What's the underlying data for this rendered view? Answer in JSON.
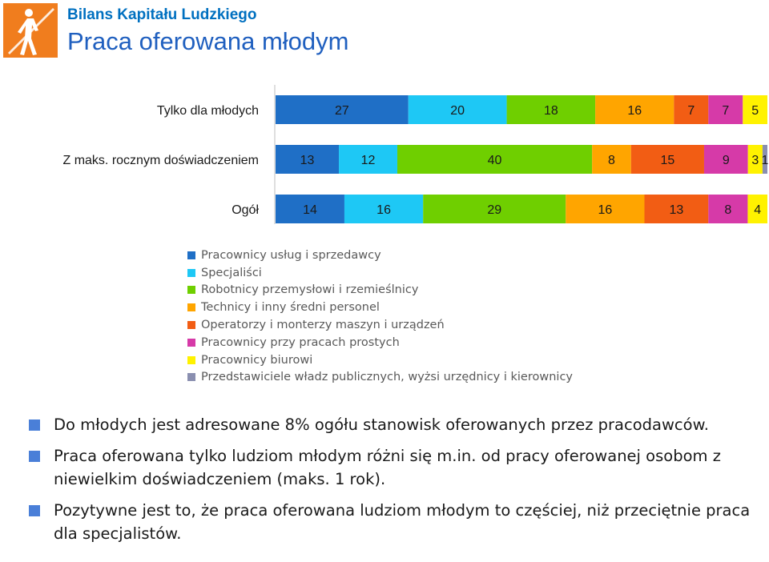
{
  "header": {
    "supertitle": "Bilans Kapitału Ludzkiego",
    "title": "Praca oferowana młodym"
  },
  "chart_data": {
    "type": "bar",
    "orientation": "horizontal",
    "stacked": true,
    "categories": [
      "Tylko dla młodych",
      "Z maks. rocznym doświadczeniem",
      "Ogół"
    ],
    "series": [
      {
        "name": "Pracownicy usług i sprzedawcy",
        "color": "#1f6fc6",
        "values": [
          27,
          13,
          14
        ]
      },
      {
        "name": "Specjaliści",
        "color": "#1ec8f5",
        "values": [
          20,
          12,
          16
        ]
      },
      {
        "name": "Robotnicy przemysłowi i rzemieślnicy",
        "color": "#6fcf00",
        "values": [
          18,
          40,
          29
        ]
      },
      {
        "name": "Technicy i inny średni personel",
        "color": "#ffa500",
        "values": [
          16,
          8,
          16
        ]
      },
      {
        "name": "Operatorzy i monterzy maszyn i urządzeń",
        "color": "#f25d14",
        "values": [
          7,
          15,
          13
        ]
      },
      {
        "name": "Pracownicy przy pracach prostych",
        "color": "#d63aa8",
        "values": [
          7,
          9,
          8
        ]
      },
      {
        "name": "Pracownicy biurowi",
        "color": "#fff200",
        "values": [
          5,
          3,
          4
        ]
      },
      {
        "name": "Przedstawiciele władz publicznych, wyżsi urzędnicy i kierownicy",
        "color": "#8a8fb0",
        "values": [
          0,
          1,
          0
        ]
      }
    ],
    "xlim": [
      0,
      100
    ],
    "legend": "bottom-left",
    "grid": false
  },
  "bullets": [
    "Do młodych jest adresowane 8% ogółu stanowisk oferowanych przez pracodawców.",
    "Praca oferowana tylko ludziom młodym różni się m.in. od pracy oferowanej osobom z niewielkim doświadczeniem (maks. 1 rok).",
    "Pozytywne jest to, że praca oferowana ludziom młodym to częściej, niż przeciętnie praca dla specjalistów."
  ],
  "colors": {
    "title": "#1f5fbf",
    "supertitle": "#0070c0",
    "logo": "#f07d1e",
    "bullet": "#4a7fd8"
  },
  "icons": {
    "logo": "person-walking-logo-icon",
    "bullet": "square-bullet-icon"
  }
}
